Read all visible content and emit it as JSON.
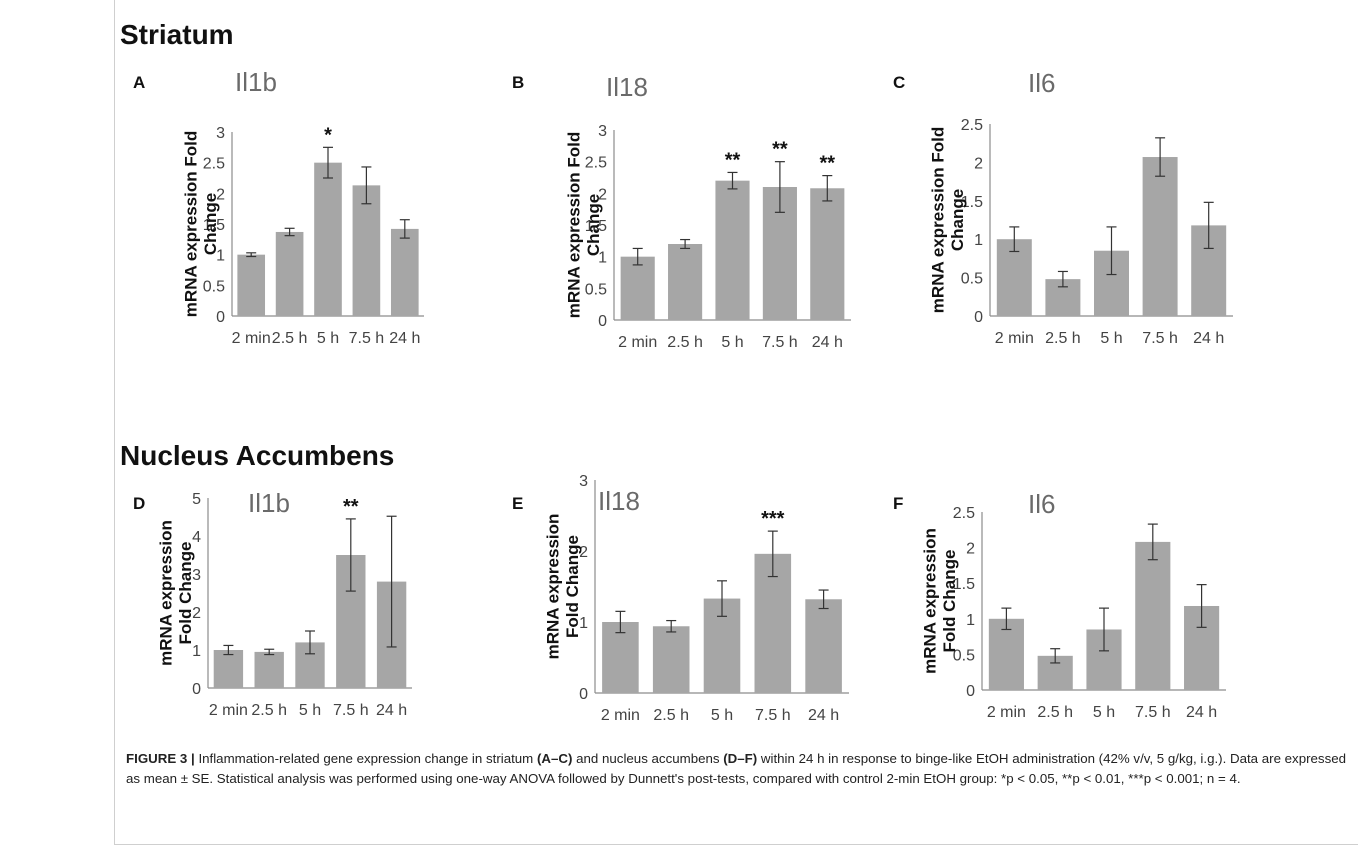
{
  "sections": [
    {
      "title": "Striatum"
    },
    {
      "title": "Nucleus Accumbens"
    }
  ],
  "style": {
    "bar_color": "#a6a6a6",
    "axis_color": "#8c8c8c",
    "title_color": "#6a6a6a"
  },
  "chart_data": [
    {
      "panel": "A",
      "type": "bar",
      "title": "Il1b",
      "ylabel": "mRNA expression Fold Change",
      "categories": [
        "2 min",
        "2.5 h",
        "5 h",
        "7.5 h",
        "24 h"
      ],
      "values": [
        1.0,
        1.37,
        2.5,
        2.13,
        1.42
      ],
      "errors": [
        0.03,
        0.06,
        0.25,
        0.3,
        0.15
      ],
      "significance": [
        "",
        "",
        "*",
        "",
        ""
      ],
      "ylim": [
        0,
        3
      ],
      "yticks": [
        "0",
        "0.5",
        "1",
        "1.5",
        "2",
        "2.5",
        "3"
      ]
    },
    {
      "panel": "B",
      "type": "bar",
      "title": "Il18",
      "ylabel": "mRNA expression Fold Change",
      "categories": [
        "2 min",
        "2.5 h",
        "5 h",
        "7.5 h",
        "24 h"
      ],
      "values": [
        1.0,
        1.2,
        2.2,
        2.1,
        2.08
      ],
      "errors": [
        0.13,
        0.07,
        0.13,
        0.4,
        0.2
      ],
      "significance": [
        "",
        "",
        "**",
        "**",
        "**"
      ],
      "ylim": [
        0,
        3
      ],
      "yticks": [
        "0",
        "0.5",
        "1",
        "1.5",
        "2",
        "2.5",
        "3"
      ]
    },
    {
      "panel": "C",
      "type": "bar",
      "title": "Il6",
      "ylabel": "mRNA expression Fold Change",
      "categories": [
        "2 min",
        "2.5 h",
        "5 h",
        "7.5 h",
        "24 h"
      ],
      "values": [
        1.0,
        0.48,
        0.85,
        2.07,
        1.18
      ],
      "errors": [
        0.16,
        0.1,
        0.31,
        0.25,
        0.3
      ],
      "significance": [
        "",
        "",
        "",
        "",
        ""
      ],
      "ylim": [
        0,
        2.5
      ],
      "yticks": [
        "0",
        "0.5",
        "1",
        "1.5",
        "2",
        "2.5"
      ]
    },
    {
      "panel": "D",
      "type": "bar",
      "title": "Il1b",
      "ylabel": "mRNA expression Fold Change",
      "categories": [
        "2 min",
        "2.5 h",
        "5 h",
        "7.5 h",
        "24 h"
      ],
      "values": [
        1.0,
        0.95,
        1.2,
        3.5,
        2.8
      ],
      "errors": [
        0.12,
        0.07,
        0.3,
        0.95,
        1.72
      ],
      "significance": [
        "",
        "",
        "",
        "**",
        ""
      ],
      "ylim": [
        0,
        5
      ],
      "yticks": [
        "0",
        "1",
        "2",
        "3",
        "4",
        "5"
      ]
    },
    {
      "panel": "E",
      "type": "bar",
      "title": "Il18",
      "ylabel": "mRNA expression Fold Change",
      "categories": [
        "2 min",
        "2.5 h",
        "5 h",
        "7.5 h",
        "24 h"
      ],
      "values": [
        1.0,
        0.94,
        1.33,
        1.96,
        1.32
      ],
      "errors": [
        0.15,
        0.08,
        0.25,
        0.32,
        0.13
      ],
      "significance": [
        "",
        "",
        "",
        "***",
        ""
      ],
      "ylim": [
        0,
        3
      ],
      "yticks": [
        "0",
        "1",
        "2",
        "3"
      ]
    },
    {
      "panel": "F",
      "type": "bar",
      "title": "Il6",
      "ylabel": "mRNA expression Fold Change",
      "categories": [
        "2 min",
        "2.5 h",
        "5 h",
        "7.5 h",
        "24 h"
      ],
      "values": [
        1.0,
        0.48,
        0.85,
        2.08,
        1.18
      ],
      "errors": [
        0.15,
        0.1,
        0.3,
        0.25,
        0.3
      ],
      "significance": [
        "",
        "",
        "",
        "",
        ""
      ],
      "ylim": [
        0,
        2.5
      ],
      "yticks": [
        "0",
        "0.5",
        "1",
        "1.5",
        "2",
        "2.5"
      ]
    }
  ],
  "caption": {
    "label": "FIGURE 3 |",
    "p1": " Inflammation-related gene expression change in striatum ",
    "b1": "(A–C)",
    "p2": " and nucleus accumbens ",
    "b2": "(D–F)",
    "p3": " within 24 h in response to binge-like EtOH administration (42% v/v, 5 g/kg, i.g.). Data are expressed as mean ± SE. Statistical analysis was performed using one-way ANOVA followed by Dunnett's post-tests, compared with control 2-min EtOH group: *p < 0.05, **p < 0.01, ***p < 0.001; n = 4."
  }
}
